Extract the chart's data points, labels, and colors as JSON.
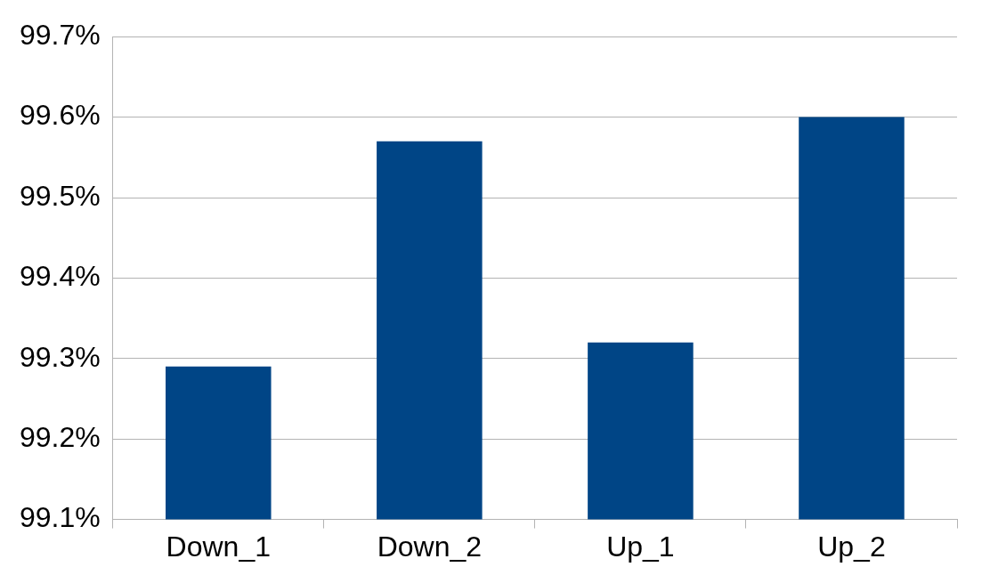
{
  "chart_data": {
    "type": "bar",
    "categories": [
      "Down_1",
      "Down_2",
      "Up_1",
      "Up_2"
    ],
    "values": [
      99.29,
      99.57,
      99.32,
      99.6
    ],
    "color": "#004586",
    "ylim": [
      99.1,
      99.7
    ],
    "yticks": [
      {
        "value": 99.1,
        "label": "99.1%"
      },
      {
        "value": 99.2,
        "label": "99.2%"
      },
      {
        "value": 99.3,
        "label": "99.3%"
      },
      {
        "value": 99.4,
        "label": "99.4%"
      },
      {
        "value": 99.5,
        "label": "99.5%"
      },
      {
        "value": 99.6,
        "label": "99.6%"
      },
      {
        "value": 99.7,
        "label": "99.7%"
      }
    ],
    "grid": "y",
    "legend": false
  }
}
